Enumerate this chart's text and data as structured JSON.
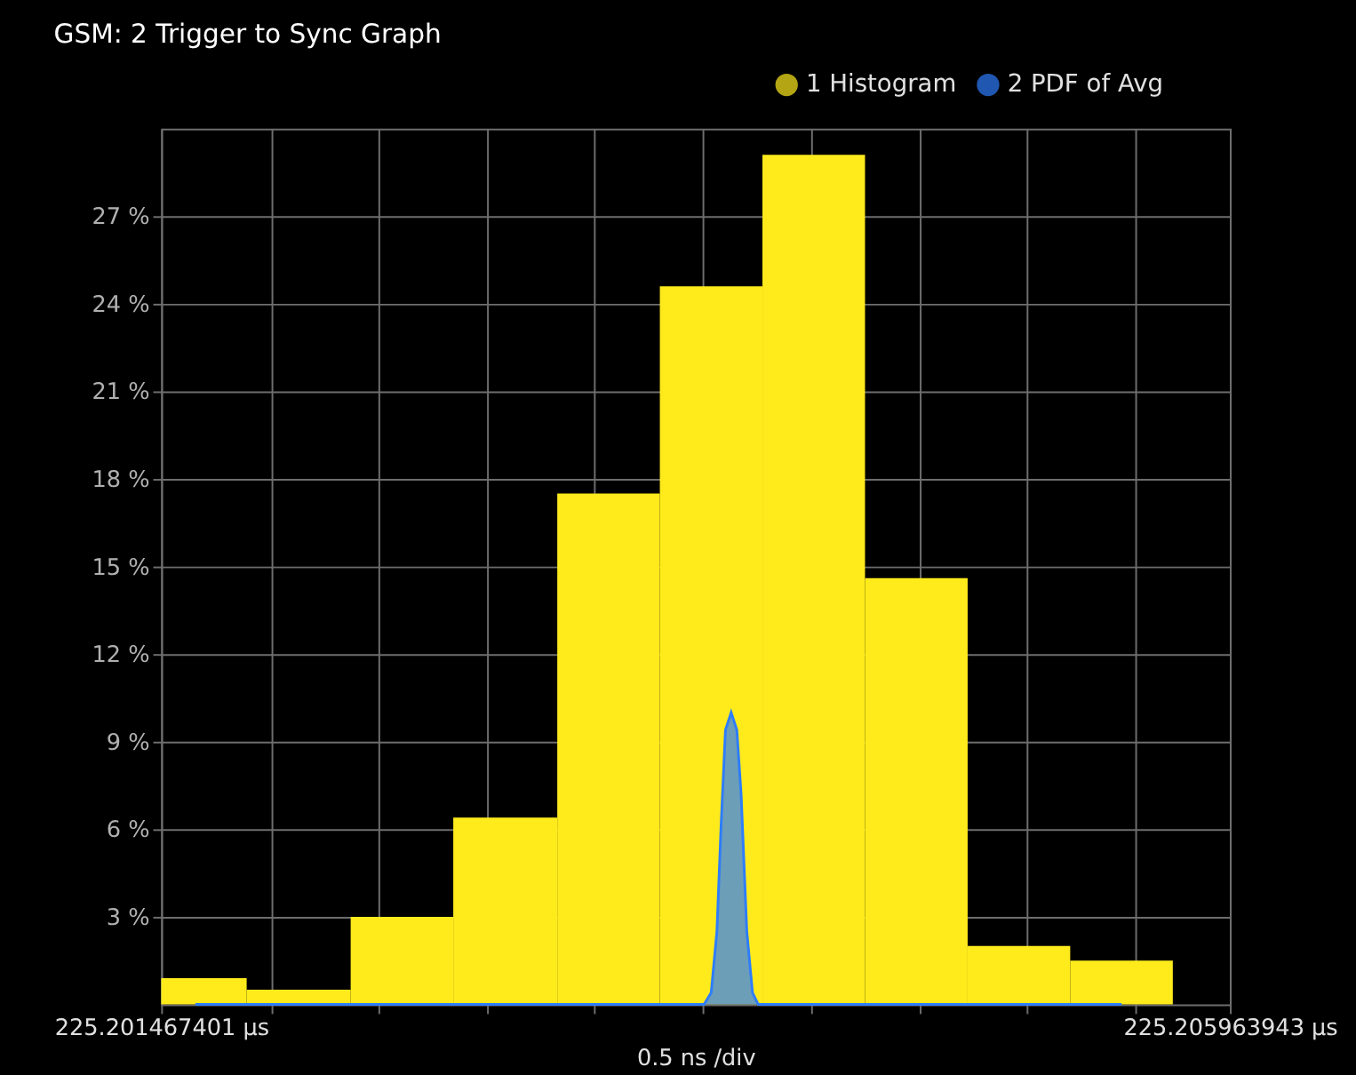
{
  "chart_data": {
    "type": "histogram",
    "title": "GSM: 2 Trigger to Sync Graph",
    "xlabel": "0.5 ns /div",
    "bins": [
      225.201467401,
      225.2018271,
      225.2022647,
      225.2026964,
      225.203134,
      225.2035656,
      225.2039973,
      225.2044289,
      225.2048606,
      225.2052922,
      225.2057239
    ],
    "series": [
      {
        "name": "1 Histogram",
        "color": "#ffeb1c",
        "values": [
          0.9,
          0.5,
          3.0,
          6.4,
          17.5,
          24.6,
          29.1,
          14.6,
          2.0,
          1.5
        ]
      },
      {
        "name": "2 PDF of Avg",
        "type": "area",
        "color": "#2e7dfb",
        "x": [
          225.2016113,
          225.2037516,
          225.2037816,
          225.2038056,
          225.2038236,
          225.2038416,
          225.2038656,
          225.2038895,
          225.2039075,
          225.2039315,
          225.2039555,
          225.2039795,
          225.2055083
        ],
        "values": [
          0,
          0,
          0.4,
          2.5,
          6.2,
          9.4,
          10.0,
          9.4,
          7.2,
          2.5,
          0.4,
          0,
          0
        ]
      }
    ],
    "xlim": [
      225.201467401,
      225.205963943
    ],
    "xticks": [
      {
        "value": 225.201467401,
        "label": "225.201467401 µs"
      },
      {
        "value": 225.201935,
        "label": null
      },
      {
        "value": 225.2023786,
        "label": null
      },
      {
        "value": 225.2028403,
        "label": null
      },
      {
        "value": 225.2032899,
        "label": null
      },
      {
        "value": 225.2037455,
        "label": null
      },
      {
        "value": 225.2042011,
        "label": null
      },
      {
        "value": 225.2046567,
        "label": null
      },
      {
        "value": 225.2051124,
        "label": null
      },
      {
        "value": 225.205568,
        "label": null
      },
      {
        "value": 225.205963943,
        "label": "225.205963943 µs"
      }
    ],
    "ylim": [
      0,
      30
    ],
    "yticks": [
      {
        "value": 3,
        "label": "3 %"
      },
      {
        "value": 6,
        "label": "6 %"
      },
      {
        "value": 9,
        "label": "9 %"
      },
      {
        "value": 12,
        "label": "12 %"
      },
      {
        "value": 15,
        "label": "15 %"
      },
      {
        "value": 18,
        "label": "18 %"
      },
      {
        "value": 21,
        "label": "21 %"
      },
      {
        "value": 24,
        "label": "24 %"
      },
      {
        "value": 27,
        "label": "27 %"
      }
    ],
    "grid": true,
    "legend": "top right"
  }
}
